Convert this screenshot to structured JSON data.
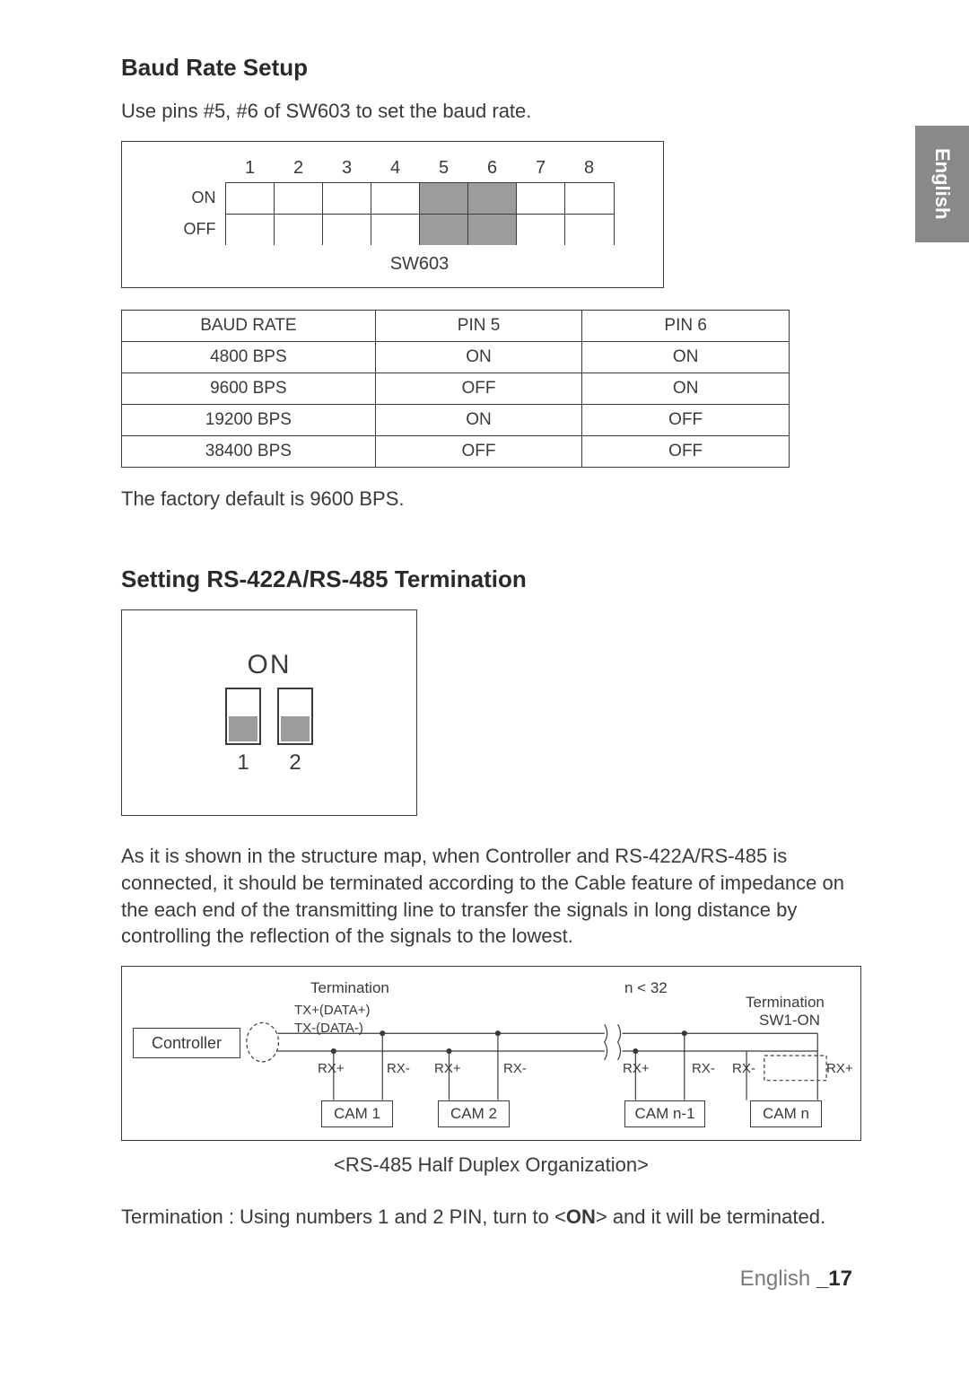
{
  "side_tab": "English",
  "section1": {
    "title": "Baud Rate Setup",
    "intro": "Use pins #5, #6 of SW603 to set the baud rate.",
    "sw603": {
      "numbers": [
        "1",
        "2",
        "3",
        "4",
        "5",
        "6",
        "7",
        "8"
      ],
      "row_on_label": "ON",
      "row_off_label": "OFF",
      "shaded_cols": [
        5,
        6
      ],
      "caption": "SW603",
      "shade_color": "#9d9c9c"
    },
    "table": {
      "headers": [
        "BAUD RATE",
        "PIN 5",
        "PIN 6"
      ],
      "rows": [
        [
          "4800 BPS",
          "ON",
          "ON"
        ],
        [
          "9600 BPS",
          "OFF",
          "ON"
        ],
        [
          "19200 BPS",
          "ON",
          "OFF"
        ],
        [
          "38400 BPS",
          "OFF",
          "OFF"
        ]
      ],
      "col_widths": [
        "38%",
        "31%",
        "31%"
      ]
    },
    "note": "The factory default is 9600 BPS."
  },
  "section2": {
    "title": "Setting RS-422A/RS-485 Termination",
    "dip": {
      "on_label": "ON",
      "numbers": [
        "1",
        "2"
      ],
      "slider_color": "#9d9c9c"
    },
    "para": "As it is shown in the structure map, when Controller and RS-422A/RS-485 is connected, it should be terminated according to the Cable feature of impedance on the each end of the transmitting line to transfer the signals in long distance by controlling the reflection of the signals to the lowest.",
    "struct": {
      "controller": "Controller",
      "termination": "Termination",
      "txp": "TX+(DATA+)",
      "txn": "TX-(DATA-)",
      "rxp": "RX+",
      "rxn": "RX-",
      "n_label": "n < 32",
      "sw1": "SW1-ON",
      "cams": [
        "CAM 1",
        "CAM 2",
        "CAM n-1",
        "CAM n"
      ],
      "caption": "<RS-485 Half Duplex Organization>"
    },
    "term_line_pre": "Termination : Using numbers 1 and 2 PIN, turn to <",
    "term_line_bold": "ON",
    "term_line_post": "> and it will be terminated."
  },
  "footer": {
    "lang": "English ",
    "page": "_17"
  }
}
